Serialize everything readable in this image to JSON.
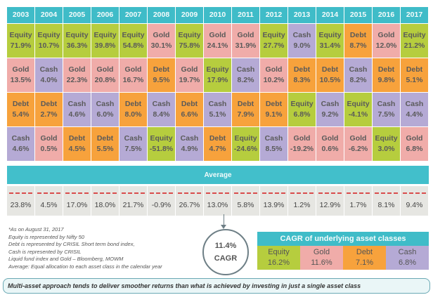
{
  "colors": {
    "Equity": "#b6cd3e",
    "Gold": "#f0aca9",
    "Debt": "#f7a23c",
    "Cash": "#b5aad5",
    "header": "#3fbcc8"
  },
  "chart_data": {
    "type": "table",
    "years": [
      "2003",
      "2004",
      "2005",
      "2006",
      "2007",
      "2008",
      "2009",
      "2010",
      "2011",
      "2012",
      "2013",
      "2014",
      "2015",
      "2016",
      "2017"
    ],
    "rows": [
      [
        [
          "Equity",
          "71.9%"
        ],
        [
          "Equity",
          "10.7%"
        ],
        [
          "Equity",
          "36.3%"
        ],
        [
          "Equity",
          "39.8%"
        ],
        [
          "Equity",
          "54.8%"
        ],
        [
          "Gold",
          "30.1%"
        ],
        [
          "Equity",
          "75.8%"
        ],
        [
          "Gold",
          "24.1%"
        ],
        [
          "Gold",
          "31.9%"
        ],
        [
          "Equity",
          "27.7%"
        ],
        [
          "Cash",
          "9.0%"
        ],
        [
          "Equity",
          "31.4%"
        ],
        [
          "Debt",
          "8.7%"
        ],
        [
          "Gold",
          "12.0%"
        ],
        [
          "Equity",
          "21.2%"
        ]
      ],
      [
        [
          "Gold",
          "13.5%"
        ],
        [
          "Cash",
          "4.0%"
        ],
        [
          "Gold",
          "22.3%"
        ],
        [
          "Gold",
          "20.8%"
        ],
        [
          "Gold",
          "16.7%"
        ],
        [
          "Debt",
          "9.5%"
        ],
        [
          "Gold",
          "19.7%"
        ],
        [
          "Equity",
          "17.9%"
        ],
        [
          "Cash",
          "8.2%"
        ],
        [
          "Gold",
          "10.2%"
        ],
        [
          "Debt",
          "8.3%"
        ],
        [
          "Debt",
          "10.5%"
        ],
        [
          "Cash",
          "8.2%"
        ],
        [
          "Debt",
          "9.8%"
        ],
        [
          "Debt",
          "5.1%"
        ]
      ],
      [
        [
          "Debt",
          "5.4%"
        ],
        [
          "Debt",
          "2.7%"
        ],
        [
          "Cash",
          "4.6%"
        ],
        [
          "Cash",
          "6.0%"
        ],
        [
          "Debt",
          "8.0%"
        ],
        [
          "Cash",
          "8.4%"
        ],
        [
          "Debt",
          "6.6%"
        ],
        [
          "Cash",
          "5.1%"
        ],
        [
          "Debt",
          "7.9%"
        ],
        [
          "Debt",
          "9.1%"
        ],
        [
          "Equity",
          "6.8%"
        ],
        [
          "Cash",
          "9.2%"
        ],
        [
          "Equity",
          "-4.1%"
        ],
        [
          "Cash",
          "7.5%"
        ],
        [
          "Cash",
          "4.4%"
        ]
      ],
      [
        [
          "Cash",
          "4.6%"
        ],
        [
          "Gold",
          "0.5%"
        ],
        [
          "Debt",
          "4.5%"
        ],
        [
          "Debt",
          "5.5%"
        ],
        [
          "Cash",
          "7.5%"
        ],
        [
          "Equity",
          "-51.8%"
        ],
        [
          "Cash",
          "4.9%"
        ],
        [
          "Debt",
          "4.7%"
        ],
        [
          "Equity",
          "-24.6%"
        ],
        [
          "Cash",
          "8.5%"
        ],
        [
          "Gold",
          "-19.2%"
        ],
        [
          "Gold",
          "0.6%"
        ],
        [
          "Gold",
          "-6.2%"
        ],
        [
          "Equity",
          "3.0%"
        ],
        [
          "Gold",
          "6.8%"
        ]
      ]
    ],
    "average_label": "Average",
    "averages": [
      "23.8%",
      "4.5%",
      "17.0%",
      "18.0%",
      "21.7%",
      "-0.9%",
      "26.7%",
      "13.0%",
      "5.8%",
      "13.9%",
      "1.2%",
      "12.9%",
      "1.7%",
      "8.1%",
      "9.4%"
    ]
  },
  "notes": [
    "*As on August 31, 2017",
    "Equity is represented by Nifty 50",
    "Debt is represented by CRISIL Short term bond index,",
    "Cash is represented by CRISIL",
    "Liquid fund index and Gold – Bloomberg, MOWM",
    "Average: Equal allocation to each asset class in the calendar year"
  ],
  "overall": {
    "value": "11.4%",
    "label": "CAGR"
  },
  "cagr_table": {
    "title": "CAGR of underlying asset classes",
    "items": [
      {
        "name": "Equity",
        "value": "16.2%"
      },
      {
        "name": "Gold",
        "value": "11.6%"
      },
      {
        "name": "Debt",
        "value": "7.1%"
      },
      {
        "name": "Cash",
        "value": "6.8%"
      }
    ]
  },
  "banner": "Multi-asset approach tends to deliver smoother returns than what is achieved by investing in just a single asset class"
}
